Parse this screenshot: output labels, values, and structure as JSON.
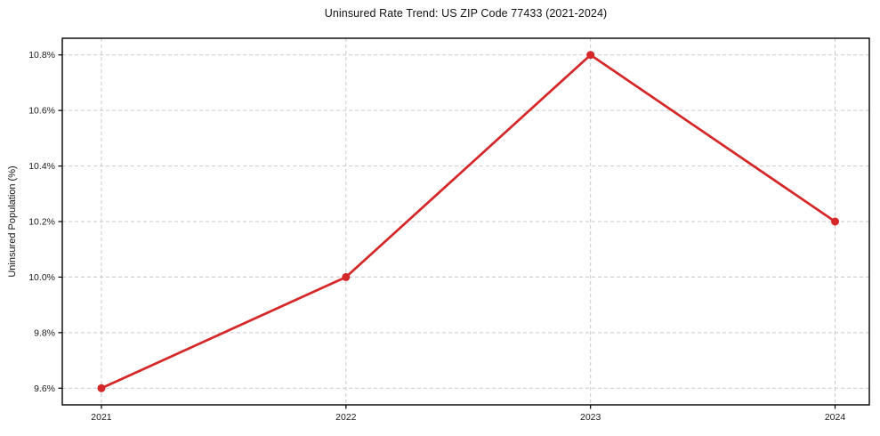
{
  "chart_data": {
    "type": "line",
    "title": "Uninsured Rate Trend: US ZIP Code 77433 (2021-2024)",
    "xlabel": "",
    "ylabel": "Uninsured Population (%)",
    "x": [
      2021,
      2022,
      2023,
      2024
    ],
    "x_tick_labels": [
      "2021",
      "2022",
      "2023",
      "2024"
    ],
    "values": [
      9.6,
      10.0,
      10.8,
      10.2
    ],
    "y_ticks": [
      9.6,
      9.8,
      10.0,
      10.2,
      10.4,
      10.6,
      10.8
    ],
    "y_tick_labels": [
      "9.6%",
      "9.8%",
      "10.0%",
      "10.2%",
      "10.4%",
      "10.6%",
      "10.8%"
    ],
    "xlim": [
      2020.84,
      2024.14
    ],
    "ylim": [
      9.54,
      10.86
    ],
    "grid": true,
    "grid_style": "dashed",
    "legend_position": "none",
    "colors": {
      "line": "#d62728",
      "marker": "#d62728",
      "grid": "#c9c9c9",
      "spine": "#000000",
      "text": "#1a1a1a"
    }
  }
}
